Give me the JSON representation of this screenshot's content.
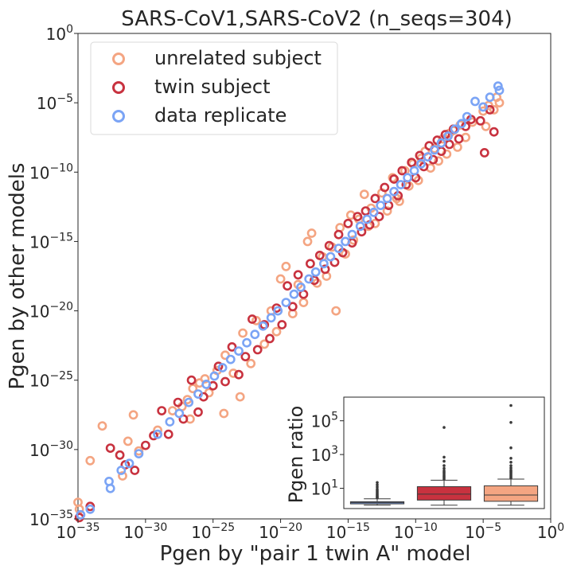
{
  "chart_data": [
    {
      "type": "scatter",
      "title": "SARS-CoV1,SARS-CoV2 (n_seqs=304)",
      "xlabel": "Pgen by \"pair 1 twin A\" model",
      "ylabel": "Pgen by other models",
      "xscale": "log",
      "yscale": "log",
      "xlim": [
        1e-35,
        1
      ],
      "ylim": [
        1e-35,
        1
      ],
      "x_ticks": [
        -35,
        -30,
        -25,
        -20,
        -15,
        -10,
        -5,
        0
      ],
      "y_ticks": [
        -35,
        -30,
        -25,
        -20,
        -15,
        -10,
        -5,
        0
      ],
      "legend_position": "top-left",
      "grid": false,
      "series": [
        {
          "name": "unrelated subject",
          "color": "#f4a582",
          "log10_points": [
            [
              -35,
              -33.8
            ],
            [
              -34.9,
              -34.3
            ],
            [
              -34.1,
              -30.8
            ],
            [
              -33.2,
              -28.3
            ],
            [
              -31.7,
              -31.9
            ],
            [
              -31.3,
              -29.4
            ],
            [
              -30.9,
              -27.5
            ],
            [
              -30.5,
              -30.1
            ],
            [
              -29.1,
              -28.6
            ],
            [
              -28.0,
              -27.2
            ],
            [
              -27.3,
              -26.9
            ],
            [
              -26.9,
              -26.4
            ],
            [
              -26.7,
              -27.8
            ],
            [
              -26.5,
              -25.6
            ],
            [
              -26.0,
              -25.2
            ],
            [
              -25.6,
              -24.9
            ],
            [
              -25.3,
              -25.9
            ],
            [
              -24.7,
              -24.3
            ],
            [
              -24.2,
              -27.4
            ],
            [
              -24.1,
              -23.2
            ],
            [
              -23.5,
              -24.5
            ],
            [
              -23.0,
              -26.2
            ],
            [
              -22.8,
              -21.6
            ],
            [
              -22.2,
              -23.8
            ],
            [
              -21.8,
              -20.7
            ],
            [
              -21.2,
              -22.4
            ],
            [
              -20.7,
              -20.0
            ],
            [
              -20.3,
              -21.5
            ],
            [
              -20.0,
              -17.7
            ],
            [
              -19.6,
              -16.8
            ],
            [
              -19.1,
              -20.2
            ],
            [
              -18.7,
              -18.1
            ],
            [
              -18.3,
              -19.4
            ],
            [
              -18.0,
              -15.0
            ],
            [
              -17.7,
              -14.4
            ],
            [
              -17.3,
              -18.0
            ],
            [
              -16.9,
              -16.1
            ],
            [
              -16.6,
              -17.5
            ],
            [
              -16.2,
              -15.4
            ],
            [
              -15.9,
              -20.0
            ],
            [
              -15.6,
              -14.0
            ],
            [
              -15.2,
              -15.9
            ],
            [
              -14.8,
              -13.1
            ],
            [
              -14.6,
              -14.9
            ],
            [
              -14.2,
              -13.4
            ],
            [
              -13.8,
              -11.6
            ],
            [
              -13.5,
              -13.9
            ],
            [
              -13.3,
              -12.6
            ],
            [
              -13.0,
              -13.7
            ],
            [
              -12.5,
              -11.5
            ],
            [
              -12.1,
              -12.8
            ],
            [
              -11.7,
              -10.4
            ],
            [
              -11.4,
              -11.9
            ],
            [
              -11.2,
              -12.1
            ],
            [
              -10.8,
              -9.9
            ],
            [
              -10.5,
              -11.0
            ],
            [
              -10.2,
              -9.4
            ],
            [
              -9.8,
              -10.6
            ],
            [
              -9.6,
              -9.0
            ],
            [
              -9.3,
              -8.5
            ],
            [
              -8.9,
              -9.7
            ],
            [
              -8.6,
              -8.3
            ],
            [
              -8.3,
              -9.2
            ],
            [
              -8.0,
              -7.6
            ],
            [
              -7.7,
              -8.7
            ],
            [
              -7.5,
              -7.2
            ],
            [
              -7.2,
              -7.0
            ],
            [
              -6.9,
              -8.2
            ],
            [
              -6.7,
              -6.6
            ],
            [
              -6.3,
              -7.5
            ],
            [
              -5.8,
              -6.4
            ],
            [
              -5.0,
              -5.6
            ],
            [
              -4.8,
              -6.7
            ],
            [
              -4.6,
              -5.2
            ],
            [
              -4.2,
              -5.5
            ],
            [
              -4.0,
              -4.6
            ],
            [
              -3.8,
              -5.0
            ]
          ]
        },
        {
          "name": "twin subject",
          "color": "#c8323f",
          "log10_points": [
            [
              -34.9,
              -34.9
            ],
            [
              -34.1,
              -34.1
            ],
            [
              -32.6,
              -29.9
            ],
            [
              -31.9,
              -30.4
            ],
            [
              -31.5,
              -31.1
            ],
            [
              -30.8,
              -31.5
            ],
            [
              -30.0,
              -29.7
            ],
            [
              -29.4,
              -29.0
            ],
            [
              -28.8,
              -27.2
            ],
            [
              -28.3,
              -28.9
            ],
            [
              -27.6,
              -26.6
            ],
            [
              -27.2,
              -27.8
            ],
            [
              -26.6,
              -25.0
            ],
            [
              -26.1,
              -27.3
            ],
            [
              -25.7,
              -26.2
            ],
            [
              -25.0,
              -25.4
            ],
            [
              -24.6,
              -24.0
            ],
            [
              -24.1,
              -25.1
            ],
            [
              -23.6,
              -22.6
            ],
            [
              -23.1,
              -24.6
            ],
            [
              -22.6,
              -23.3
            ],
            [
              -22.1,
              -20.6
            ],
            [
              -21.7,
              -22.8
            ],
            [
              -21.2,
              -21.0
            ],
            [
              -20.8,
              -22.0
            ],
            [
              -20.3,
              -19.8
            ],
            [
              -19.9,
              -21.0
            ],
            [
              -19.5,
              -18.2
            ],
            [
              -19.1,
              -19.7
            ],
            [
              -18.7,
              -17.4
            ],
            [
              -18.3,
              -18.8
            ],
            [
              -17.8,
              -16.6
            ],
            [
              -17.5,
              -17.8
            ],
            [
              -17.1,
              -16.0
            ],
            [
              -16.7,
              -17.0
            ],
            [
              -16.4,
              -15.3
            ],
            [
              -16.0,
              -16.5
            ],
            [
              -15.7,
              -14.5
            ],
            [
              -15.4,
              -15.8
            ],
            [
              -15.0,
              -13.7
            ],
            [
              -14.7,
              -15.1
            ],
            [
              -14.3,
              -13.2
            ],
            [
              -14.0,
              -14.3
            ],
            [
              -13.7,
              -12.8
            ],
            [
              -13.4,
              -13.8
            ],
            [
              -13.0,
              -11.9
            ],
            [
              -12.7,
              -13.2
            ],
            [
              -12.3,
              -11.1
            ],
            [
              -12.0,
              -12.4
            ],
            [
              -11.6,
              -10.5
            ],
            [
              -11.3,
              -11.7
            ],
            [
              -11.0,
              -9.9
            ],
            [
              -10.7,
              -10.9
            ],
            [
              -10.3,
              -9.3
            ],
            [
              -10.0,
              -10.4
            ],
            [
              -9.7,
              -8.8
            ],
            [
              -9.4,
              -9.6
            ],
            [
              -9.0,
              -8.1
            ],
            [
              -8.7,
              -9.1
            ],
            [
              -8.4,
              -7.7
            ],
            [
              -8.1,
              -8.5
            ],
            [
              -7.8,
              -7.3
            ],
            [
              -7.5,
              -8.0
            ],
            [
              -7.2,
              -6.9
            ],
            [
              -6.8,
              -7.6
            ],
            [
              -6.3,
              -6.7
            ],
            [
              -5.9,
              -6.2
            ],
            [
              -5.2,
              -6.3
            ],
            [
              -4.9,
              -8.6
            ],
            [
              -4.5,
              -5.5
            ],
            [
              -4.2,
              -7.1
            ]
          ]
        },
        {
          "name": "data replicate",
          "color": "#7ba4f5",
          "log10_points": [
            [
              -34.8,
              -34.7
            ],
            [
              -34.1,
              -34.3
            ],
            [
              -32.7,
              -32.3
            ],
            [
              -32.6,
              -32.8
            ],
            [
              -31.8,
              -31.5
            ],
            [
              -31.2,
              -31.0
            ],
            [
              -30.5,
              -30.3
            ],
            [
              -29.1,
              -28.9
            ],
            [
              -28.2,
              -28.0
            ],
            [
              -27.5,
              -27.4
            ],
            [
              -26.8,
              -26.6
            ],
            [
              -26.1,
              -26.0
            ],
            [
              -25.5,
              -25.3
            ],
            [
              -24.9,
              -24.7
            ],
            [
              -24.3,
              -24.1
            ],
            [
              -23.7,
              -23.5
            ],
            [
              -23.1,
              -22.9
            ],
            [
              -22.5,
              -22.3
            ],
            [
              -21.9,
              -21.7
            ],
            [
              -21.3,
              -21.1
            ],
            [
              -20.7,
              -20.5
            ],
            [
              -20.2,
              -20.0
            ],
            [
              -19.6,
              -19.4
            ],
            [
              -19.0,
              -18.8
            ],
            [
              -18.5,
              -18.3
            ],
            [
              -17.9,
              -17.7
            ],
            [
              -17.4,
              -17.2
            ],
            [
              -16.8,
              -16.6
            ],
            [
              -16.3,
              -16.1
            ],
            [
              -15.7,
              -15.5
            ],
            [
              -15.2,
              -15.0
            ],
            [
              -14.7,
              -14.5
            ],
            [
              -14.1,
              -13.9
            ],
            [
              -13.6,
              -13.4
            ],
            [
              -13.1,
              -12.9
            ],
            [
              -12.6,
              -12.4
            ],
            [
              -12.1,
              -11.9
            ],
            [
              -11.6,
              -11.4
            ],
            [
              -11.1,
              -10.9
            ],
            [
              -10.6,
              -10.4
            ],
            [
              -10.1,
              -9.9
            ],
            [
              -9.6,
              -9.4
            ],
            [
              -9.1,
              -8.9
            ],
            [
              -8.6,
              -8.4
            ],
            [
              -8.1,
              -7.9
            ],
            [
              -7.6,
              -7.4
            ],
            [
              -7.1,
              -6.9
            ],
            [
              -6.6,
              -6.5
            ],
            [
              -6.2,
              -6.0
            ],
            [
              -5.6,
              -4.9
            ],
            [
              -5.0,
              -5.3
            ],
            [
              -4.5,
              -4.6
            ],
            [
              -3.9,
              -3.8
            ],
            [
              -3.8,
              -4.1
            ]
          ]
        }
      ]
    },
    {
      "type": "box",
      "ylabel": "Pgen ratio",
      "yscale": "log",
      "y_ticks": [
        1,
        3,
        5
      ],
      "categories": [
        "data replicate",
        "twin subject",
        "unrelated subject"
      ],
      "series": [
        {
          "name": "data replicate",
          "color": "#7ba4f5",
          "q1": 1.2,
          "median": 1.4,
          "q3": 1.6,
          "whisker_low": 1.0,
          "whisker_high": 2.4,
          "outliers": [
            2.7,
            3.0,
            3.4,
            3.9,
            4.5,
            5.3,
            6.2,
            7.5,
            9.0,
            12,
            16,
            22
          ]
        },
        {
          "name": "twin subject",
          "color": "#c8323f",
          "q1": 2.0,
          "median": 4.5,
          "q3": 12.5,
          "whisker_low": 1.0,
          "whisker_high": 30,
          "outliers": [
            35,
            42,
            50,
            60,
            75,
            90,
            110,
            150,
            220,
            400,
            700,
            40000
          ]
        },
        {
          "name": "unrelated subject",
          "color": "#f4a582",
          "q1": 1.7,
          "median": 4.0,
          "q3": 14,
          "whisker_low": 1.0,
          "whisker_high": 35,
          "outliers": [
            40,
            48,
            58,
            70,
            85,
            100,
            120,
            160,
            220,
            350,
            600,
            2500,
            80000,
            800000
          ]
        }
      ]
    }
  ]
}
